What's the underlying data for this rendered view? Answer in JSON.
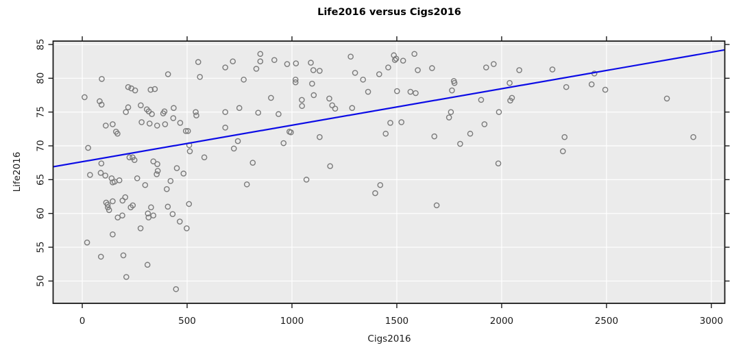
{
  "chart_data": {
    "type": "scatter",
    "title": "Life2016 versus Cigs2016",
    "xlabel": "Cigs2016",
    "ylabel": "Life2016",
    "xlim": [
      -139,
      3064
    ],
    "ylim": [
      46.7,
      85.5
    ],
    "x_ticks": [
      0,
      500,
      1000,
      1500,
      2000,
      2500,
      3000
    ],
    "y_ticks": [
      50,
      55,
      60,
      65,
      70,
      75,
      80,
      85
    ],
    "grid": true,
    "legend": "none",
    "colors": {
      "panel_bg": "#ebebeb",
      "grid": "#ffffff",
      "point_stroke": "#7a7a7a",
      "regression_line": "#0b0be6",
      "frame": "#1a1a1a",
      "tick_text": "#1a1a1a"
    },
    "regression_line": {
      "x1": -139,
      "y1": 66.9,
      "x2": 3064,
      "y2": 84.2
    },
    "points": [
      [
        553,
        82.4
      ],
      [
        682,
        81.6
      ],
      [
        409,
        80.6
      ],
      [
        561,
        80.2
      ],
      [
        93,
        79.9
      ],
      [
        219,
        78.7
      ],
      [
        234,
        78.5
      ],
      [
        252,
        78.2
      ],
      [
        326,
        78.3
      ],
      [
        346,
        78.4
      ],
      [
        11,
        77.2
      ],
      [
        83,
        76.6
      ],
      [
        92,
        76.1
      ],
      [
        279,
        76.0
      ],
      [
        219,
        75.7
      ],
      [
        208,
        75.0
      ],
      [
        308,
        75.4
      ],
      [
        317,
        75.1
      ],
      [
        332,
        74.7
      ],
      [
        392,
        75.1
      ],
      [
        386,
        74.8
      ],
      [
        436,
        75.6
      ],
      [
        541,
        75.0
      ],
      [
        544,
        74.5
      ],
      [
        682,
        75.0
      ],
      [
        434,
        74.1
      ],
      [
        283,
        73.5
      ],
      [
        321,
        73.3
      ],
      [
        357,
        73.0
      ],
      [
        395,
        73.2
      ],
      [
        467,
        73.4
      ],
      [
        112,
        73.0
      ],
      [
        145,
        73.2
      ],
      [
        161,
        72.1
      ],
      [
        168,
        71.8
      ],
      [
        494,
        72.2
      ],
      [
        504,
        72.2
      ],
      [
        682,
        72.7
      ],
      [
        28,
        69.7
      ],
      [
        510,
        70.1
      ],
      [
        513,
        69.2
      ],
      [
        225,
        68.3
      ],
      [
        240,
        68.3
      ],
      [
        249,
        67.9
      ],
      [
        582,
        68.3
      ],
      [
        339,
        67.7
      ],
      [
        358,
        67.3
      ],
      [
        91,
        67.4
      ],
      [
        360,
        66.3
      ],
      [
        451,
        66.7
      ],
      [
        483,
        65.9
      ],
      [
        37,
        65.7
      ],
      [
        88,
        66.0
      ],
      [
        110,
        65.6
      ],
      [
        140,
        65.2
      ],
      [
        145,
        64.6
      ],
      [
        154,
        64.7
      ],
      [
        177,
        64.9
      ],
      [
        262,
        65.2
      ],
      [
        300,
        64.2
      ],
      [
        355,
        65.8
      ],
      [
        403,
        63.6
      ],
      [
        421,
        64.8
      ],
      [
        205,
        62.4
      ],
      [
        192,
        61.9
      ],
      [
        114,
        61.6
      ],
      [
        121,
        61.3
      ],
      [
        122,
        60.9
      ],
      [
        145,
        61.8
      ],
      [
        128,
        60.5
      ],
      [
        169,
        59.4
      ],
      [
        191,
        59.7
      ],
      [
        231,
        60.9
      ],
      [
        241,
        61.2
      ],
      [
        316,
        59.4
      ],
      [
        313,
        60.0
      ],
      [
        328,
        60.9
      ],
      [
        339,
        59.7
      ],
      [
        408,
        61.0
      ],
      [
        431,
        59.9
      ],
      [
        465,
        58.8
      ],
      [
        498,
        57.8
      ],
      [
        509,
        61.4
      ],
      [
        278,
        57.8
      ],
      [
        145,
        56.9
      ],
      [
        23,
        55.7
      ],
      [
        89,
        53.6
      ],
      [
        196,
        53.8
      ],
      [
        311,
        52.4
      ],
      [
        210,
        50.6
      ],
      [
        447,
        48.8
      ],
      [
        849,
        83.6
      ],
      [
        718,
        82.5
      ],
      [
        849,
        82.5
      ],
      [
        830,
        81.4
      ],
      [
        916,
        82.7
      ],
      [
        977,
        82.1
      ],
      [
        1019,
        82.2
      ],
      [
        1090,
        82.3
      ],
      [
        1102,
        81.2
      ],
      [
        1132,
        81.1
      ],
      [
        1280,
        83.2
      ],
      [
        1301,
        80.8
      ],
      [
        1339,
        79.8
      ],
      [
        1416,
        80.6
      ],
      [
        1459,
        81.6
      ],
      [
        1486,
        83.4
      ],
      [
        1491,
        82.7
      ],
      [
        1497,
        82.9
      ],
      [
        1530,
        82.6
      ],
      [
        770,
        79.8
      ],
      [
        1017,
        79.8
      ],
      [
        1017,
        79.4
      ],
      [
        1096,
        79.2
      ],
      [
        900,
        77.1
      ],
      [
        1104,
        77.5
      ],
      [
        1363,
        78.0
      ],
      [
        1501,
        78.1
      ],
      [
        1047,
        76.8
      ],
      [
        1048,
        75.9
      ],
      [
        1178,
        77.0
      ],
      [
        1192,
        76.0
      ],
      [
        1206,
        75.5
      ],
      [
        749,
        75.6
      ],
      [
        839,
        74.9
      ],
      [
        936,
        74.7
      ],
      [
        1287,
        75.6
      ],
      [
        1469,
        73.4
      ],
      [
        1522,
        73.5
      ],
      [
        1447,
        71.8
      ],
      [
        988,
        72.1
      ],
      [
        995,
        72.0
      ],
      [
        1132,
        71.3
      ],
      [
        742,
        70.7
      ],
      [
        723,
        69.6
      ],
      [
        960,
        70.4
      ],
      [
        813,
        67.5
      ],
      [
        1182,
        67.0
      ],
      [
        785,
        64.3
      ],
      [
        1069,
        65.0
      ],
      [
        1421,
        64.2
      ],
      [
        1397,
        63.0
      ],
      [
        1584,
        83.6
      ],
      [
        1600,
        81.2
      ],
      [
        1668,
        81.5
      ],
      [
        1926,
        81.6
      ],
      [
        1962,
        82.1
      ],
      [
        2084,
        81.2
      ],
      [
        2242,
        81.3
      ],
      [
        1772,
        79.6
      ],
      [
        1775,
        79.3
      ],
      [
        1763,
        78.2
      ],
      [
        1565,
        78.0
      ],
      [
        1590,
        77.8
      ],
      [
        2308,
        78.7
      ],
      [
        2038,
        79.3
      ],
      [
        1902,
        76.8
      ],
      [
        2049,
        77.1
      ],
      [
        2041,
        76.7
      ],
      [
        1758,
        75.0
      ],
      [
        1749,
        74.2
      ],
      [
        1987,
        75.0
      ],
      [
        1918,
        73.2
      ],
      [
        1850,
        71.8
      ],
      [
        1679,
        71.4
      ],
      [
        1802,
        70.3
      ],
      [
        2300,
        71.3
      ],
      [
        2292,
        69.2
      ],
      [
        1984,
        67.4
      ],
      [
        1690,
        61.2
      ],
      [
        2442,
        80.7
      ],
      [
        2429,
        79.1
      ],
      [
        2494,
        78.3
      ],
      [
        2788,
        77.0
      ],
      [
        2914,
        71.3
      ]
    ]
  }
}
